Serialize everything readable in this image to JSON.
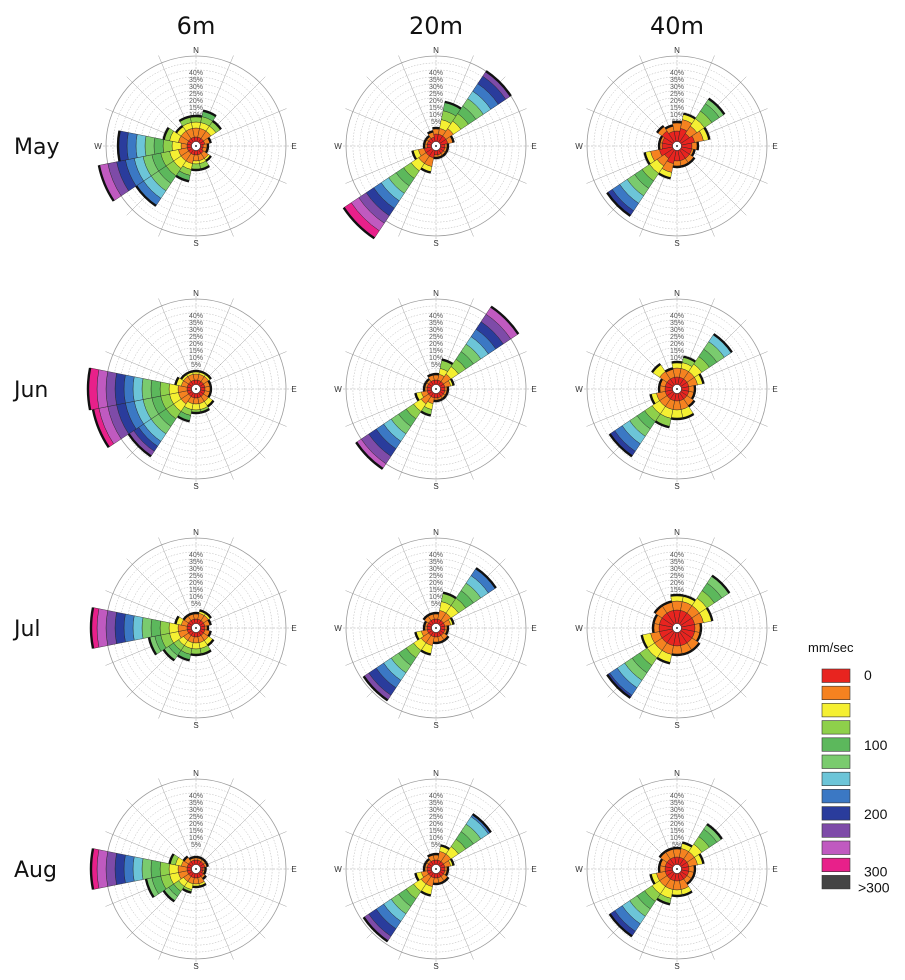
{
  "chart_data": {
    "type": "wind_rose",
    "columns": [
      "6m",
      "20m",
      "40m"
    ],
    "rows": [
      "May",
      "Jun",
      "Jul",
      "Aug"
    ],
    "compass": {
      "n": "N",
      "e": "E",
      "s": "S",
      "w": "W"
    },
    "ring_labels": [
      "5%",
      "10%",
      "15%",
      "20%",
      "25%",
      "30%",
      "35%",
      "40%"
    ],
    "legend": {
      "title": "mm/sec",
      "labels": [
        "0",
        "100",
        "200",
        "300",
        ">300"
      ],
      "colors": [
        "#e8241f",
        "#f58220",
        "#f5f032",
        "#8ed04b",
        "#5cb85c",
        "#7acb6e",
        "#6cc5d8",
        "#3b78c4",
        "#2a3c9c",
        "#7e4ba8",
        "#c05ac0",
        "#e8208a",
        "#444444"
      ]
    },
    "petal_directions": [
      "N",
      "NNE",
      "NE",
      "ENE",
      "E",
      "ESE",
      "SE",
      "SSE",
      "S",
      "SSW",
      "SW",
      "WSW",
      "W",
      "WNW",
      "NW",
      "NNW"
    ],
    "roses": [
      [
        {
          "levels": [
            [
              1.5,
              3,
              4,
              5
            ],
            [
              1.5,
              3,
              4,
              5,
              6
            ],
            [
              1.5,
              3,
              4,
              5
            ],
            [
              1.5,
              2.5
            ],
            [
              1.2,
              2
            ],
            [
              1.2,
              2
            ],
            [
              1.5,
              2.5,
              3
            ],
            [
              1.5,
              2.5,
              3,
              4
            ],
            [
              1.5,
              2.5,
              3,
              4
            ],
            [
              1.5,
              3,
              4,
              5,
              6
            ],
            [
              1.5,
              3,
              4.5,
              6,
              7.5,
              9,
              10.5,
              12
            ],
            [
              1.5,
              3,
              4.5,
              6,
              7.5,
              9,
              10.5,
              12,
              13.5,
              15,
              16.5
            ],
            [
              1.5,
              2.5,
              4,
              5.5,
              7,
              8.5,
              10,
              11.5,
              13
            ],
            [
              1.5,
              3,
              4.5,
              5.5
            ],
            [
              1.5,
              3,
              4
            ],
            [
              1.5,
              3,
              4,
              5
            ]
          ]
        },
        {
          "levels": [
            [
              2,
              3
            ],
            [
              2,
              3,
              4.5,
              6,
              7.5
            ],
            [
              2,
              3.5,
              5,
              6.5,
              8,
              9.5,
              11,
              12.5,
              14,
              15
            ],
            [
              2,
              3
            ],
            [
              1.5,
              2
            ],
            [
              1.5,
              2
            ],
            [
              1.5,
              2
            ],
            [
              1.5,
              2
            ],
            [
              1.5,
              2
            ],
            [
              2,
              3.5,
              4.5
            ],
            [
              2,
              3.5,
              5,
              6.5,
              8,
              9.5,
              11,
              12.5,
              14,
              15.5,
              17,
              18.5
            ],
            [
              2,
              3,
              4
            ],
            [
              1.5,
              2
            ],
            [
              1.5,
              2
            ],
            [
              1.5,
              2
            ],
            [
              1.5,
              2.5
            ]
          ]
        },
        {
          "levels": [
            [
              2.5,
              4
            ],
            [
              3,
              4.5,
              5.5
            ],
            [
              2.5,
              4,
              5.5,
              7,
              8.5,
              9.5
            ],
            [
              3,
              4.5,
              5.5
            ],
            [
              2.5,
              3.5
            ],
            [
              2.5,
              3
            ],
            [
              2.5,
              3.5
            ],
            [
              2.5,
              3.5
            ],
            [
              2.5,
              3.5
            ],
            [
              3,
              4.5,
              5.5
            ],
            [
              2.5,
              4,
              5.5,
              7,
              8.5,
              10,
              11.5,
              13,
              14
            ],
            [
              3,
              4.5,
              5.5
            ],
            [
              2.5,
              3
            ],
            [
              2.5,
              3
            ],
            [
              3,
              4
            ],
            [
              2.5,
              3.5
            ]
          ]
        }
      ],
      [
        {
          "levels": [
            [
              1.5,
              2.5,
              3
            ],
            [
              1.5,
              2.5,
              3
            ],
            [
              1.5,
              2.5,
              3
            ],
            [
              1.5,
              2.5
            ],
            [
              1.5,
              2.5
            ],
            [
              1.5,
              2.5
            ],
            [
              1.5,
              2.5,
              3.5
            ],
            [
              1.5,
              2.5,
              3.5,
              4
            ],
            [
              1.5,
              2.5,
              3.5,
              4
            ],
            [
              1.5,
              2.5,
              3.5,
              4.5,
              5.5
            ],
            [
              1.5,
              3,
              4.5,
              6,
              7.5,
              9,
              10.5,
              11.5,
              12.5,
              13.5
            ],
            [
              1.5,
              3,
              4.5,
              6,
              7.5,
              9,
              10.5,
              12,
              13.5,
              15,
              16.5,
              17.5
            ],
            [
              1.5,
              3,
              4.5,
              6,
              7.5,
              9,
              10.5,
              12,
              13.5,
              15,
              16.5,
              18
            ],
            [
              1.5,
              2.5,
              3.5
            ],
            [
              1.5,
              2.5,
              3
            ],
            [
              1.5,
              2.5,
              3
            ]
          ]
        },
        {
          "levels": [
            [
              1.5,
              2.5
            ],
            [
              1.5,
              2.5,
              3.5,
              5
            ],
            [
              1.5,
              3,
              4.5,
              6,
              7.5,
              9,
              10.5,
              12,
              13.5,
              15,
              16.5
            ],
            [
              1.5,
              2.5,
              3
            ],
            [
              1.5,
              2
            ],
            [
              1.5,
              2
            ],
            [
              1.5,
              2
            ],
            [
              1.5,
              2
            ],
            [
              1.5,
              2
            ],
            [
              1.5,
              2.5,
              3.5,
              4.5
            ],
            [
              1.5,
              3,
              4.5,
              6,
              7.5,
              9,
              10.5,
              12,
              13.5,
              15,
              16
            ],
            [
              1.5,
              2.5,
              3.5
            ],
            [
              1.5,
              2
            ],
            [
              1.5,
              2
            ],
            [
              1.5,
              2
            ],
            [
              1.5,
              2.5
            ]
          ]
        },
        {
          "levels": [
            [
              2,
              3.5,
              4.5
            ],
            [
              2,
              3.5,
              4.5,
              5.5
            ],
            [
              2,
              3.5,
              5,
              6.5,
              8,
              9.5,
              11
            ],
            [
              2,
              3.5,
              4.5
            ],
            [
              2,
              3
            ],
            [
              2,
              3
            ],
            [
              2,
              3.5
            ],
            [
              2,
              3.5,
              5
            ],
            [
              2,
              3.5,
              5
            ],
            [
              2,
              3.5,
              5,
              6.5
            ],
            [
              2,
              3.5,
              5,
              6.5,
              8,
              9.5,
              11,
              12.5,
              13.5
            ],
            [
              2,
              3.5,
              4.5
            ],
            [
              2,
              3
            ],
            [
              2,
              3
            ],
            [
              2,
              3.5,
              5
            ],
            [
              2,
              3.5
            ]
          ]
        }
      ],
      [
        {
          "levels": [
            [
              1.5,
              2.5
            ],
            [
              1.5,
              2.5,
              3
            ],
            [
              1.5,
              2.5,
              3
            ],
            [
              1.5,
              2.5
            ],
            [
              1.5,
              2
            ],
            [
              1.5,
              2.5
            ],
            [
              1.5,
              2.5,
              3.5
            ],
            [
              1.5,
              2.5,
              3.5,
              4.5
            ],
            [
              1.5,
              2.5,
              3.5,
              4.5
            ],
            [
              1.5,
              2.5,
              3.5,
              4.5,
              5.5
            ],
            [
              1.5,
              2.5,
              3.5,
              4.5,
              5.5,
              6.5
            ],
            [
              1.5,
              3,
              4.5,
              6,
              7,
              8
            ],
            [
              1.5,
              3,
              4.5,
              6,
              7.5,
              9,
              10.5,
              12,
              13.5,
              15,
              16.5,
              17.5
            ],
            [
              1.5,
              2.5,
              3.5
            ],
            [
              1.5,
              2.5
            ],
            [
              1.5,
              2.5
            ]
          ]
        },
        {
          "levels": [
            [
              1.5,
              2.5
            ],
            [
              1.5,
              3,
              4.5,
              6
            ],
            [
              1.5,
              3,
              4.5,
              6,
              7.5,
              9,
              10.5,
              12
            ],
            [
              1.5,
              2.5,
              3
            ],
            [
              1.5,
              2
            ],
            [
              1.5,
              2
            ],
            [
              1.5,
              2.5
            ],
            [
              1.5,
              2.5
            ],
            [
              1.5,
              2.5
            ],
            [
              1.5,
              3,
              4.5
            ],
            [
              1.5,
              3,
              4.5,
              6,
              7.5,
              9,
              10.5,
              12,
              13.5,
              14.5
            ],
            [
              1.5,
              2.5,
              3.5
            ],
            [
              1.5,
              2
            ],
            [
              1.5,
              2
            ],
            [
              1.5,
              2.5
            ],
            [
              1.5,
              2.5
            ]
          ]
        },
        {
          "levels": [
            [
              3,
              4.5,
              5.5
            ],
            [
              3,
              4.5,
              5.5
            ],
            [
              3,
              4.5,
              6,
              7.5,
              9,
              10.5
            ],
            [
              3,
              4.5,
              6
            ],
            [
              3,
              4
            ],
            [
              3,
              4
            ],
            [
              3,
              4.5
            ],
            [
              3,
              4.5
            ],
            [
              3,
              4.5
            ],
            [
              3,
              4.5,
              6
            ],
            [
              3,
              4.5,
              6,
              7.5,
              9,
              10.5,
              12,
              13.5,
              14
            ],
            [
              3,
              4.5,
              6
            ],
            [
              3,
              4
            ],
            [
              3,
              4
            ],
            [
              3,
              4.5
            ],
            [
              3,
              4.5
            ]
          ]
        }
      ],
      [
        {
          "levels": [
            [
              1.5,
              2
            ],
            [
              1.5,
              2
            ],
            [
              1.5,
              2
            ],
            [
              1.5,
              2
            ],
            [
              1.2,
              1.6
            ],
            [
              1.2,
              1.6
            ],
            [
              1.5,
              2
            ],
            [
              1.5,
              2.5,
              3
            ],
            [
              1.5,
              2.5,
              3
            ],
            [
              1.5,
              2.5,
              3.5,
              4
            ],
            [
              1.5,
              2.5,
              3.5,
              4.5,
              5.5,
              6.5
            ],
            [
              1.5,
              3,
              4.5,
              6,
              7.5,
              8.5
            ],
            [
              1.5,
              3,
              4.5,
              6,
              7.5,
              9,
              10.5,
              12,
              13.5,
              15,
              16.5,
              17.5
            ],
            [
              1.5,
              2.5,
              3.5,
              4.5
            ],
            [
              1.5,
              2.5
            ],
            [
              1.5,
              2
            ]
          ]
        },
        {
          "levels": [
            [
              1.5,
              2.5
            ],
            [
              1.5,
              3,
              4
            ],
            [
              1.5,
              3,
              4.5,
              6,
              7.5,
              9,
              10.5,
              11
            ],
            [
              1.5,
              2.5,
              3
            ],
            [
              1.5,
              2
            ],
            [
              1.5,
              2
            ],
            [
              1.5,
              2.5
            ],
            [
              1.5,
              2.5
            ],
            [
              1.5,
              2.5
            ],
            [
              1.5,
              3,
              4.5
            ],
            [
              1.5,
              3,
              4.5,
              6,
              7.5,
              9,
              10.5,
              12,
              13.5,
              14.5
            ],
            [
              1.5,
              2.5,
              3.5
            ],
            [
              1.5,
              2
            ],
            [
              1.5,
              2
            ],
            [
              1.5,
              2
            ],
            [
              1.5,
              2.5
            ]
          ]
        },
        {
          "levels": [
            [
              2,
              3.5
            ],
            [
              2,
              3.5,
              4.5
            ],
            [
              2,
              3.5,
              5,
              6.5,
              8,
              9
            ],
            [
              2,
              3.5,
              4.5
            ],
            [
              2,
              3
            ],
            [
              2,
              3
            ],
            [
              2,
              3
            ],
            [
              2,
              3.5,
              4.5
            ],
            [
              2,
              3.5,
              4.5
            ],
            [
              2,
              3.5,
              5,
              6
            ],
            [
              2,
              3.5,
              5,
              6.5,
              8,
              9.5,
              11,
              12.5,
              13.5
            ],
            [
              2,
              3.5,
              4.5
            ],
            [
              2,
              3
            ],
            [
              2,
              3
            ],
            [
              2,
              3.5
            ],
            [
              2,
              3.5
            ]
          ]
        }
      ]
    ]
  }
}
